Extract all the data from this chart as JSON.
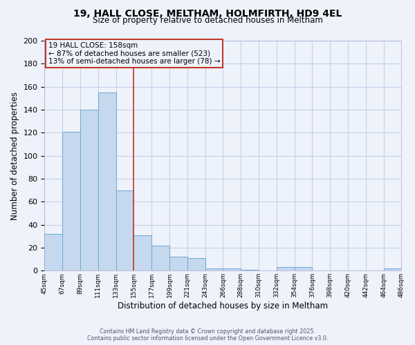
{
  "title_line1": "19, HALL CLOSE, MELTHAM, HOLMFIRTH, HD9 4EL",
  "title_line2": "Size of property relative to detached houses in Meltham",
  "bar_values": [
    32,
    121,
    140,
    155,
    70,
    31,
    22,
    12,
    11,
    2,
    2,
    1,
    0,
    3,
    3,
    0,
    0,
    0,
    0,
    2
  ],
  "x_labels": [
    "45sqm",
    "67sqm",
    "89sqm",
    "111sqm",
    "133sqm",
    "155sqm",
    "177sqm",
    "199sqm",
    "221sqm",
    "243sqm",
    "266sqm",
    "288sqm",
    "310sqm",
    "332sqm",
    "354sqm",
    "376sqm",
    "398sqm",
    "420sqm",
    "442sqm",
    "464sqm",
    "486sqm"
  ],
  "bar_color": "#c5d8ee",
  "bar_edge_color": "#6aaad4",
  "xlabel": "Distribution of detached houses by size in Meltham",
  "ylabel": "Number of detached properties",
  "ylim": [
    0,
    200
  ],
  "yticks": [
    0,
    20,
    40,
    60,
    80,
    100,
    120,
    140,
    160,
    180,
    200
  ],
  "annotation_line1": "19 HALL CLOSE: 158sqm",
  "annotation_line2": "← 87% of detached houses are smaller (523)",
  "annotation_line3": "13% of semi-detached houses are larger (78) →",
  "red_line_color": "#c0392b",
  "annotation_box_edge": "#c0392b",
  "background_color": "#eef2fb",
  "grid_color": "#c5d0e8",
  "footer_line1": "Contains HM Land Registry data © Crown copyright and database right 2025.",
  "footer_line2": "Contains public sector information licensed under the Open Government Licence v3.0."
}
